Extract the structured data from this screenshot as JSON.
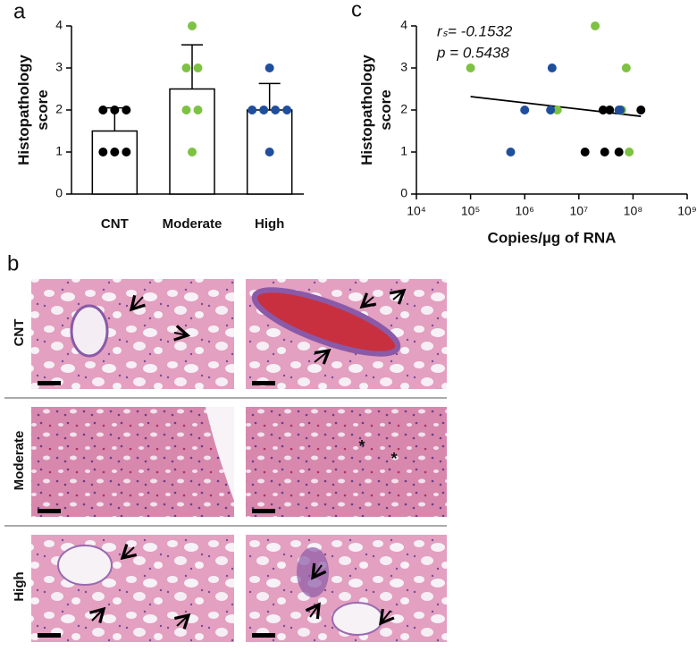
{
  "chart_data": [
    {
      "type": "bar",
      "panel_label": "a",
      "ylabel": [
        "Histopathology",
        "score"
      ],
      "categories": [
        "CNT",
        "Moderate",
        "High"
      ],
      "values": [
        1.5,
        2.5,
        2.0
      ],
      "errors": [
        0.55,
        1.05,
        0.63
      ],
      "points": [
        [
          2,
          2,
          2,
          1,
          1,
          1
        ],
        [
          4,
          3,
          3,
          2,
          2,
          1
        ],
        [
          3,
          2,
          2,
          2,
          2,
          1
        ]
      ],
      "point_colors": [
        "#000000",
        "#7dc242",
        "#1f4e9c"
      ],
      "bar_color": "#ffffff",
      "ylim": [
        0,
        4
      ],
      "yticks": [
        0,
        1,
        2,
        3,
        4
      ]
    },
    {
      "type": "scatter",
      "panel_label": "c",
      "ylabel": [
        "Histopathology",
        "score"
      ],
      "xlabel": "Copies/µg of RNA",
      "xscale": "log",
      "xlim": [
        10000,
        1000000000
      ],
      "xticks": [
        {
          "value": 10000,
          "label": "10⁴"
        },
        {
          "value": 100000,
          "label": "10⁵"
        },
        {
          "value": 1000000,
          "label": "10⁶"
        },
        {
          "value": 10000000,
          "label": "10⁷"
        },
        {
          "value": 100000000,
          "label": "10⁸"
        },
        {
          "value": 1000000000,
          "label": "10⁹"
        }
      ],
      "ylim": [
        0,
        4
      ],
      "yticks": [
        0,
        1,
        2,
        3,
        4
      ],
      "annotations": [
        "rₛ= -0.1532",
        "p = 0.5438"
      ],
      "series": [
        {
          "color": "#000000",
          "x": [
            13000000,
            28000000,
            30000000,
            37000000,
            55000000,
            140000000
          ],
          "y": [
            1,
            2,
            1,
            2,
            1,
            2
          ]
        },
        {
          "color": "#7dc242",
          "x": [
            100000,
            4000000,
            20000000,
            62000000,
            75000000,
            85000000
          ],
          "y": [
            3,
            2,
            4,
            2,
            3,
            1
          ]
        },
        {
          "color": "#1f4e9c",
          "x": [
            550000,
            1000000,
            3000000,
            3200000,
            55000000,
            58000000
          ],
          "y": [
            1,
            2,
            2,
            3,
            2,
            2
          ]
        }
      ],
      "fit": {
        "color": "#000000",
        "x": [
          100000,
          140000000
        ],
        "y": [
          2.32,
          1.85
        ]
      }
    }
  ],
  "image_panel": {
    "label": "b",
    "rows": [
      "CNT",
      "Moderate",
      "High"
    ],
    "asterisks": [
      "*",
      "*"
    ]
  }
}
